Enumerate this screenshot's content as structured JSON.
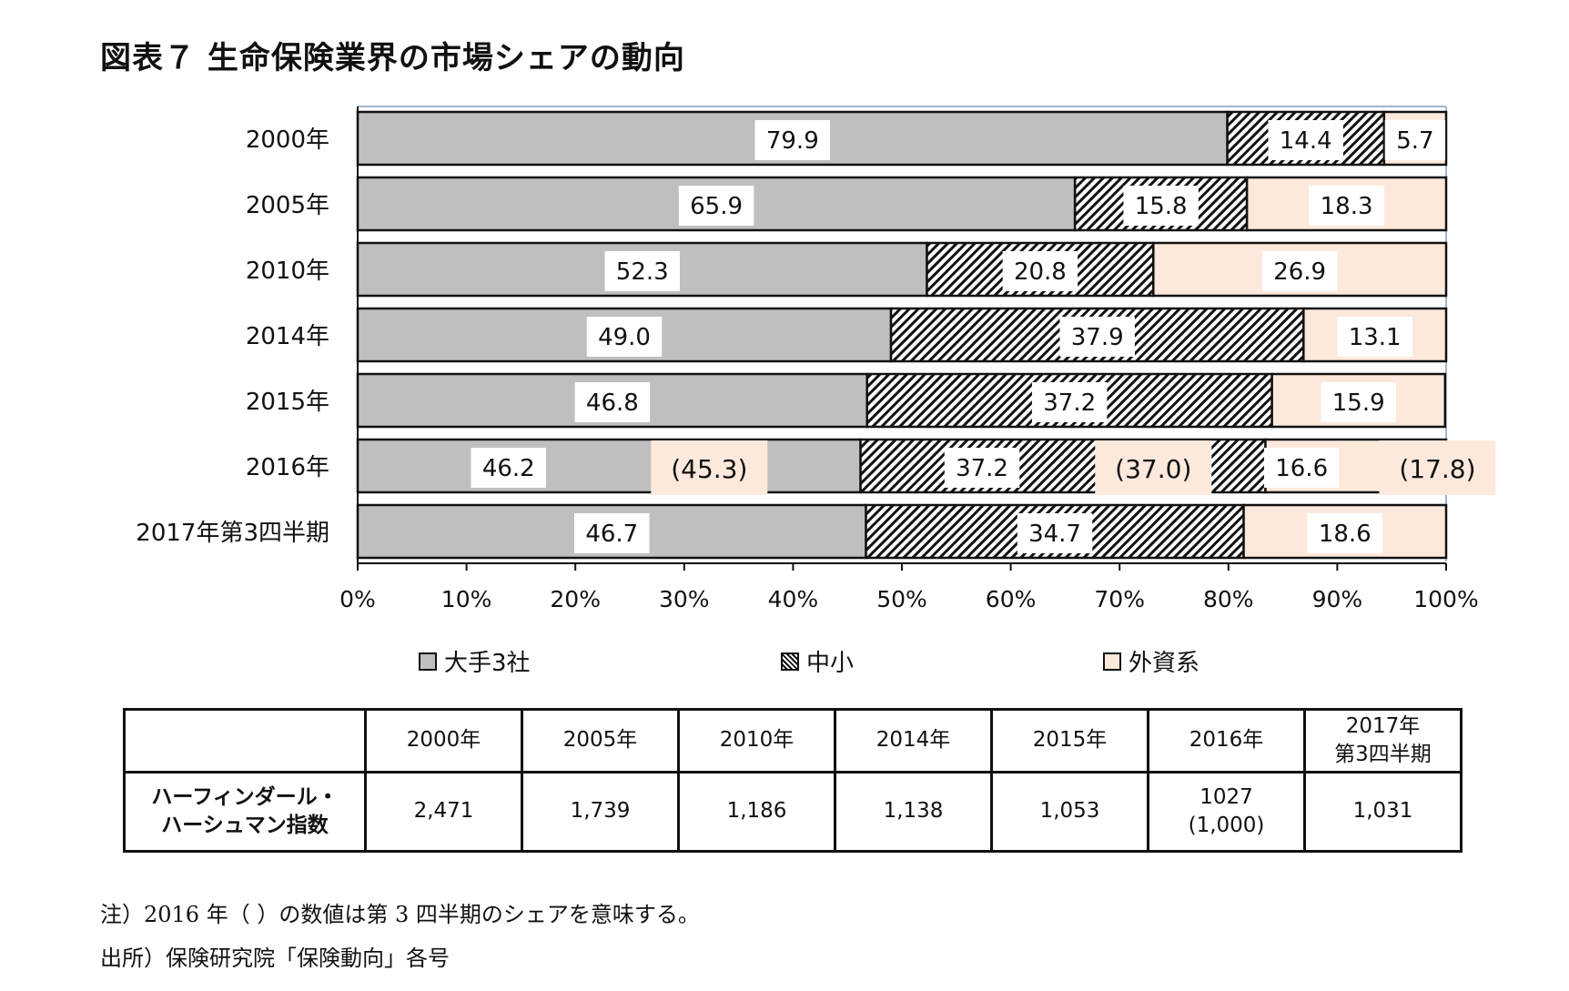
{
  "title": "図表７ 生命保険業界の市場シェアの動向",
  "chart_data": {
    "type": "bar",
    "orientation": "horizontal",
    "stacked": true,
    "categories": [
      "2000年",
      "2005年",
      "2010年",
      "2014年",
      "2015年",
      "2016年",
      "2017年第3四半期"
    ],
    "series": [
      {
        "name": "大手3社",
        "values": [
          79.9,
          65.9,
          52.3,
          49.0,
          46.8,
          46.2,
          46.7
        ],
        "labels": [
          "79.9",
          "65.9",
          "52.3",
          "49.0",
          "46.8",
          "46.2",
          "46.7"
        ],
        "color": "#bfbfbf",
        "pattern": "solid"
      },
      {
        "name": "中小",
        "values": [
          14.4,
          15.8,
          20.8,
          37.9,
          37.2,
          37.2,
          34.7
        ],
        "labels": [
          "14.4",
          "15.8",
          "20.8",
          "37.9",
          "37.2",
          "37.2",
          "34.7"
        ],
        "color": "#111111",
        "pattern": "diagonal-hatch"
      },
      {
        "name": "外資系",
        "values": [
          5.7,
          18.3,
          26.9,
          13.1,
          15.9,
          16.6,
          18.6
        ],
        "labels": [
          "5.7",
          "18.3",
          "26.9",
          "13.1",
          "15.9",
          "16.6",
          "18.6"
        ],
        "color": "#fde9dc",
        "pattern": "solid"
      }
    ],
    "annotations_2016_q3": [
      "(45.3)",
      "(37.0)",
      "(17.8)"
    ],
    "xticks": [
      "0%",
      "10%",
      "20%",
      "30%",
      "40%",
      "50%",
      "60%",
      "70%",
      "80%",
      "90%",
      "100%"
    ],
    "xlim": [
      0,
      100
    ],
    "legend_position": "bottom",
    "grid": false
  },
  "legend": [
    "大手3社",
    "中小",
    "外資系"
  ],
  "table": {
    "headers": [
      "",
      "2000年",
      "2005年",
      "2010年",
      "2014年",
      "2015年",
      "2016年",
      "2017年\n第3四半期"
    ],
    "row_label": "ハーフィンダール・\nハーシュマン指数",
    "values": [
      "2,471",
      "1,739",
      "1,186",
      "1,138",
      "1,053",
      "1027\n(1,000)",
      "1,031"
    ]
  },
  "notes": [
    "注）2016 年（ ）の数値は第 3 四半期のシェアを意味する。",
    "出所）保険研究院「保険動向」各号"
  ]
}
